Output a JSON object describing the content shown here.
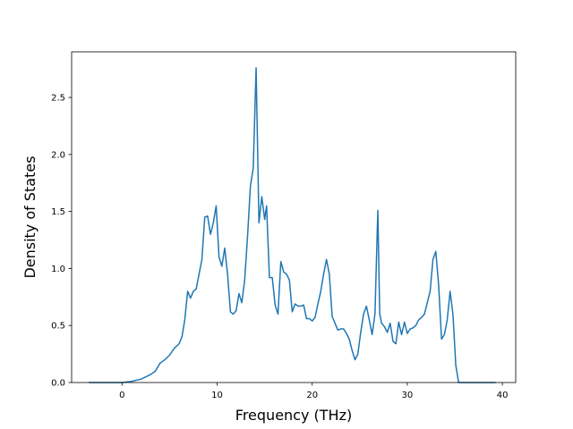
{
  "chart_data": {
    "type": "line",
    "title": "",
    "xlabel": "Frequency (THz)",
    "ylabel": "Density of States",
    "xlim": [
      -5.3,
      41.4
    ],
    "ylim": [
      0.0,
      2.9
    ],
    "xticks": [
      0,
      10,
      20,
      30,
      40
    ],
    "xtick_labels": [
      "0",
      "10",
      "20",
      "30",
      "40"
    ],
    "yticks": [
      0.0,
      0.5,
      1.0,
      1.5,
      2.0,
      2.5
    ],
    "ytick_labels": [
      "0.0",
      "0.5",
      "1.0",
      "1.5",
      "2.0",
      "2.5"
    ],
    "grid": false,
    "legend": "none",
    "series": [
      {
        "color": "#1f77b4",
        "x": [
          -3.5,
          0,
          1,
          2,
          3,
          3.5,
          4,
          4.5,
          5,
          5.5,
          6,
          6.3,
          6.6,
          6.9,
          7.2,
          7.5,
          7.8,
          8.1,
          8.4,
          8.7,
          9,
          9.3,
          9.6,
          9.9,
          10.2,
          10.5,
          10.8,
          11.1,
          11.4,
          11.7,
          12,
          12.3,
          12.6,
          12.9,
          13.2,
          13.5,
          13.8,
          14.1,
          14.4,
          14.7,
          15,
          15.2,
          15.5,
          15.8,
          16.1,
          16.4,
          16.7,
          17,
          17.3,
          17.6,
          17.9,
          18.2,
          18.5,
          18.8,
          19.1,
          19.4,
          19.7,
          20,
          20.3,
          20.6,
          20.9,
          21.2,
          21.5,
          21.8,
          22.1,
          22.4,
          22.7,
          23,
          23.3,
          23.6,
          23.9,
          24.2,
          24.5,
          24.8,
          25.1,
          25.4,
          25.7,
          26,
          26.3,
          26.6,
          26.9,
          27.1,
          27.3,
          27.6,
          27.9,
          28.2,
          28.5,
          28.8,
          29.1,
          29.4,
          29.7,
          30,
          30.3,
          30.6,
          30.9,
          31.2,
          31.5,
          31.8,
          32.1,
          32.4,
          32.7,
          33,
          33.3,
          33.6,
          33.9,
          34.2,
          34.5,
          34.8,
          35.1,
          35.4,
          35.7,
          36,
          36.3,
          37,
          38,
          39.3
        ],
        "y": [
          0.0,
          0.0,
          0.01,
          0.03,
          0.07,
          0.1,
          0.17,
          0.2,
          0.24,
          0.3,
          0.34,
          0.4,
          0.55,
          0.8,
          0.74,
          0.8,
          0.82,
          0.95,
          1.08,
          1.45,
          1.46,
          1.3,
          1.4,
          1.55,
          1.1,
          1.02,
          1.18,
          0.95,
          0.62,
          0.6,
          0.63,
          0.78,
          0.7,
          0.9,
          1.28,
          1.72,
          1.88,
          2.76,
          1.4,
          1.63,
          1.43,
          1.55,
          0.92,
          0.92,
          0.68,
          0.6,
          1.06,
          0.97,
          0.95,
          0.9,
          0.62,
          0.69,
          0.67,
          0.67,
          0.68,
          0.56,
          0.56,
          0.54,
          0.57,
          0.69,
          0.8,
          0.95,
          1.08,
          0.95,
          0.58,
          0.52,
          0.46,
          0.47,
          0.47,
          0.43,
          0.38,
          0.28,
          0.2,
          0.25,
          0.44,
          0.6,
          0.67,
          0.55,
          0.42,
          0.6,
          1.51,
          0.6,
          0.52,
          0.49,
          0.44,
          0.52,
          0.36,
          0.34,
          0.53,
          0.42,
          0.53,
          0.43,
          0.47,
          0.48,
          0.5,
          0.55,
          0.57,
          0.6,
          0.7,
          0.8,
          1.08,
          1.15,
          0.85,
          0.38,
          0.42,
          0.55,
          0.8,
          0.6,
          0.15,
          0.0,
          0.0,
          0.0,
          0.0,
          0.0,
          0.0,
          0.0
        ]
      }
    ]
  }
}
